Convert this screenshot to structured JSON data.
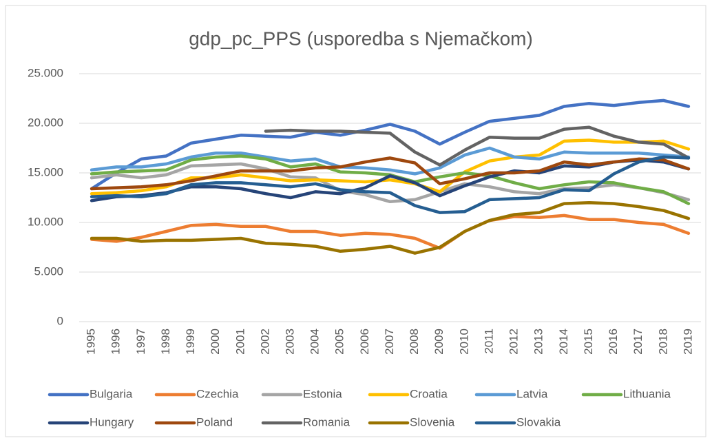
{
  "chart_data": {
    "type": "line",
    "title": "gdp_pc_PPS (usporedba s Njemačkom)",
    "categories": [
      "1995",
      "1996",
      "1997",
      "1998",
      "1999",
      "2000",
      "2001",
      "2002",
      "2003",
      "2004",
      "2005",
      "2006",
      "2007",
      "2008",
      "2009",
      "2010",
      "2011",
      "2012",
      "2013",
      "2014",
      "2015",
      "2016",
      "2017",
      "2018",
      "2019"
    ],
    "ylim": [
      0,
      25000
    ],
    "yticks": [
      0,
      {
        "value": 5000,
        "label": "5.000"
      },
      {
        "value": 10000,
        "label": "10.000"
      },
      {
        "value": 15000,
        "label": "15.000"
      },
      {
        "value": 20000,
        "label": "20.000"
      },
      {
        "value": 25000,
        "label": "25.000"
      }
    ],
    "grid": true,
    "legend": "bottom",
    "series": [
      {
        "name": "Bulgaria",
        "color": "#4472c4",
        "values": [
          13400,
          15000,
          16400,
          16700,
          18000,
          18400,
          18800,
          18700,
          18600,
          19100,
          18800,
          19300,
          19900,
          19200,
          17900,
          19100,
          20200,
          20500,
          20800,
          21700,
          22000,
          21800,
          22100,
          22300,
          21700
        ]
      },
      {
        "name": "Czechia",
        "color": "#ed7d31",
        "values": [
          8300,
          8100,
          8500,
          9100,
          9700,
          9800,
          9600,
          9600,
          9100,
          9100,
          8700,
          8900,
          8800,
          8400,
          7400,
          9100,
          10200,
          10600,
          10500,
          10700,
          10300,
          10300,
          10000,
          9800,
          8900
        ]
      },
      {
        "name": "Estonia",
        "color": "#a5a5a5",
        "values": [
          14500,
          14800,
          14500,
          14800,
          15700,
          15800,
          15900,
          15400,
          14600,
          14500,
          13200,
          12800,
          12100,
          12300,
          13100,
          13900,
          13600,
          13100,
          12900,
          13400,
          13500,
          13800,
          13500,
          13000,
          12300
        ]
      },
      {
        "name": "Croatia",
        "color": "#ffc000",
        "values": [
          12900,
          13000,
          13200,
          13600,
          14500,
          14500,
          14800,
          14500,
          14200,
          14300,
          14200,
          14100,
          14300,
          13900,
          13100,
          15100,
          16200,
          16600,
          16800,
          18200,
          18300,
          18100,
          18100,
          18200,
          17400
        ]
      },
      {
        "name": "Latvia",
        "color": "#5b9bd5",
        "values": [
          15300,
          15600,
          15600,
          15900,
          16600,
          17000,
          17000,
          16600,
          16200,
          16400,
          15600,
          15500,
          15300,
          14900,
          15500,
          16800,
          17500,
          16600,
          16400,
          17100,
          17000,
          17000,
          17000,
          16800,
          16600
        ]
      },
      {
        "name": "Lithuania",
        "color": "#70ad47",
        "values": [
          14900,
          15100,
          15200,
          15300,
          16300,
          16600,
          16700,
          16400,
          15600,
          15900,
          15100,
          15000,
          14800,
          14100,
          14600,
          15000,
          14700,
          14000,
          13400,
          13800,
          14100,
          14000,
          13500,
          13100,
          11900
        ]
      },
      {
        "name": "Hungary",
        "color": "#264478",
        "values": [
          12200,
          12600,
          12700,
          13000,
          13600,
          13600,
          13400,
          12900,
          12500,
          13100,
          12900,
          13500,
          14700,
          14000,
          12700,
          13700,
          14600,
          15200,
          15000,
          15700,
          15600,
          16100,
          16300,
          16100,
          15400
        ]
      },
      {
        "name": "Poland",
        "color": "#9e480e",
        "values": [
          13400,
          13500,
          13600,
          13800,
          14200,
          14700,
          15200,
          15200,
          15200,
          15500,
          15600,
          16100,
          16500,
          16000,
          13900,
          14400,
          15000,
          15000,
          15200,
          16100,
          15800,
          16100,
          16400,
          16300,
          15400
        ]
      },
      {
        "name": "Romania",
        "color": "#636363",
        "values": [
          null,
          null,
          null,
          null,
          null,
          null,
          null,
          19200,
          19300,
          19200,
          19200,
          19100,
          19000,
          17100,
          15800,
          17300,
          18600,
          18500,
          18500,
          19400,
          19600,
          18700,
          18100,
          17900,
          16500
        ]
      },
      {
        "name": "Slovenia",
        "color": "#997300",
        "values": [
          8400,
          8400,
          8100,
          8200,
          8200,
          8300,
          8400,
          7900,
          7800,
          7600,
          7100,
          7300,
          7600,
          6900,
          7500,
          9100,
          10200,
          10800,
          11000,
          11900,
          12000,
          11900,
          11600,
          11200,
          10400
        ]
      },
      {
        "name": "Slovakia",
        "color": "#255e91",
        "values": [
          12600,
          12700,
          12600,
          12900,
          13800,
          14000,
          14000,
          13800,
          13600,
          13900,
          13300,
          13100,
          13000,
          11700,
          11000,
          11100,
          12300,
          12400,
          12500,
          13300,
          13200,
          14900,
          16100,
          16600,
          16500
        ]
      }
    ]
  }
}
